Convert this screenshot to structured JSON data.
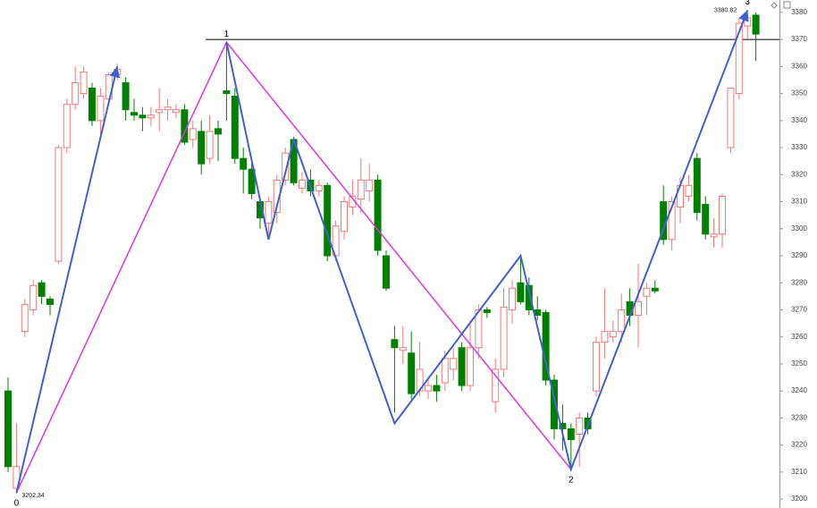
{
  "chart_data": {
    "type": "candlestick",
    "open": [
      3240,
      3204,
      3262,
      3270,
      3280,
      3274,
      3288,
      3330,
      3346,
      3350,
      3352,
      3340,
      3348,
      3357,
      3354,
      3343,
      3342,
      3341,
      3343,
      3344,
      3343,
      3344,
      3333,
      3336,
      3326,
      3337,
      3351,
      3349,
      3326,
      3322,
      3310,
      3302,
      3306,
      3318,
      3333,
      3315,
      3318,
      3314,
      3316,
      3290,
      3299,
      3308,
      3311,
      3314,
      3318,
      3290,
      3259,
      3255,
      3254,
      3240,
      3240,
      3242,
      3243,
      3248,
      3256,
      3242,
      3256,
      3270,
      3236,
      3248,
      3270,
      3280,
      3279,
      3270,
      3269,
      3244,
      3228,
      3226,
      3224,
      3230,
      3240,
      3258,
      3260,
      3262,
      3273,
      3268,
      3275,
      3278,
      3310,
      3296,
      3308,
      3312,
      3326,
      3309,
      3297,
      3298,
      3330,
      3350,
      3375,
      3379
    ],
    "close": [
      3212,
      3212,
      3272,
      3279,
      3275,
      3272,
      3330,
      3346,
      3354,
      3358,
      3340,
      3349,
      3357,
      3359,
      3344,
      3342,
      3341,
      3342,
      3344,
      3345,
      3344,
      3332,
      3337,
      3324,
      3336,
      3335,
      3350,
      3326,
      3322,
      3313,
      3304,
      3310,
      3318,
      3328,
      3317,
      3318,
      3314,
      3316,
      3290,
      3301,
      3310,
      3312,
      3318,
      3318,
      3292,
      3278,
      3256,
      3256,
      3239,
      3248,
      3242,
      3240,
      3252,
      3252,
      3242,
      3256,
      3270,
      3269,
      3248,
      3271,
      3278,
      3273,
      3270,
      3268,
      3244,
      3226,
      3226,
      3222,
      3230,
      3226,
      3258,
      3262,
      3262,
      3270,
      3268,
      3273,
      3278,
      3277,
      3296,
      3310,
      3316,
      3316,
      3306,
      3298,
      3298,
      3312,
      3352,
      3376,
      3378,
      3372
    ],
    "high": [
      3245,
      3228,
      3274,
      3281,
      3281,
      3275,
      3331,
      3348,
      3360,
      3360,
      3354,
      3352,
      3358,
      3361,
      3356,
      3348,
      3345,
      3345,
      3352,
      3348,
      3346,
      3346,
      3340,
      3340,
      3342,
      3340,
      3369,
      3352,
      3330,
      3325,
      3312,
      3312,
      3320,
      3330,
      3334,
      3321,
      3322,
      3318,
      3317,
      3303,
      3312,
      3318,
      3326,
      3324,
      3320,
      3292,
      3264,
      3264,
      3262,
      3258,
      3245,
      3246,
      3255,
      3256,
      3258,
      3266,
      3272,
      3271,
      3252,
      3278,
      3281,
      3290,
      3282,
      3275,
      3270,
      3246,
      3235,
      3228,
      3232,
      3232,
      3260,
      3278,
      3266,
      3276,
      3278,
      3287,
      3280,
      3281,
      3316,
      3312,
      3319,
      3320,
      3328,
      3312,
      3304,
      3313,
      3352,
      3378,
      3380,
      3380
    ],
    "low": [
      3210,
      3202,
      3260,
      3268,
      3272,
      3268,
      3287,
      3328,
      3344,
      3348,
      3338,
      3335,
      3346,
      3355,
      3340,
      3340,
      3336,
      3338,
      3336,
      3340,
      3341,
      3331,
      3330,
      3320,
      3324,
      3325,
      3340,
      3324,
      3313,
      3311,
      3300,
      3298,
      3302,
      3316,
      3316,
      3313,
      3312,
      3312,
      3288,
      3288,
      3296,
      3305,
      3306,
      3310,
      3290,
      3277,
      3232,
      3250,
      3237,
      3238,
      3237,
      3236,
      3240,
      3244,
      3240,
      3240,
      3252,
      3267,
      3232,
      3245,
      3265,
      3272,
      3268,
      3266,
      3242,
      3222,
      3218,
      3212,
      3212,
      3224,
      3238,
      3252,
      3258,
      3258,
      3264,
      3256,
      3268,
      3276,
      3294,
      3292,
      3302,
      3310,
      3303,
      3296,
      3293,
      3293,
      3328,
      3348,
      3370,
      3362
    ],
    "up_color": "#f07878",
    "down_color": "#008000",
    "ylim": [
      3196.7,
      3384.6
    ],
    "yticks": [
      3200,
      3210,
      3220,
      3230,
      3240,
      3250,
      3260,
      3270,
      3280,
      3290,
      3300,
      3310,
      3320,
      3330,
      3340,
      3350,
      3360,
      3370,
      3380
    ],
    "reference_line": 3370,
    "waves": [
      {
        "color": "#e033e0",
        "x": [
          1,
          26,
          67,
          88
        ],
        "values": [
          3202.34,
          3369,
          3211,
          3380.82
        ]
      },
      {
        "color": "#4060d0",
        "x": [
          1,
          13
        ],
        "values": [
          3202.34,
          3360
        ]
      },
      {
        "color": "#4060d0",
        "x": [
          26,
          31,
          34,
          46,
          61,
          67,
          88
        ],
        "values": [
          3369,
          3296,
          3333,
          3228,
          3290,
          3211,
          3380.82
        ]
      }
    ],
    "wave_labels": [
      {
        "label": "0",
        "x": 1,
        "value": 3202.34
      },
      {
        "label": "1",
        "x": 26,
        "value": 3369
      },
      {
        "label": "2",
        "x": 67,
        "value": 3211
      },
      {
        "label": "3",
        "x": 88,
        "value": 3380.82
      }
    ],
    "price_labels": [
      {
        "x": 1,
        "value": 3202.34
      },
      {
        "x": 88,
        "value": 3380.82
      }
    ]
  }
}
